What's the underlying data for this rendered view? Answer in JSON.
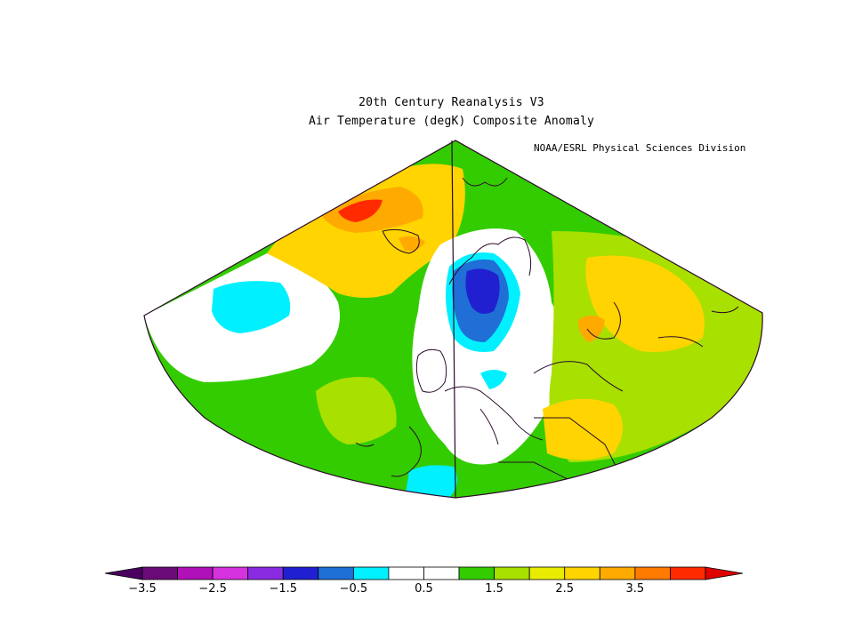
{
  "title": {
    "line1": "20th Century Reanalysis V3",
    "line2": "Air Temperature (degK) Composite Anomaly",
    "credit": "NOAA/ESRL Physical Sciences Division"
  },
  "colorbar": {
    "colors": [
      "#6a0a78",
      "#b010b8",
      "#d632de",
      "#8a2be2",
      "#2020d0",
      "#1f6fd6",
      "#00f0ff",
      "#ffffff",
      "#ffffff",
      "#33cc00",
      "#a8e000",
      "#e8ec00",
      "#ffd400",
      "#ffaa00",
      "#ff7a00",
      "#ff2a00"
    ],
    "under_color": "#4b0060",
    "over_color": "#e00000",
    "tick_labels": [
      "−3.5",
      "−2.5",
      "−1.5",
      "−0.5",
      "0.5",
      "1.5",
      "2.5",
      "3.5"
    ]
  },
  "map": {
    "background_color": "#33cc00",
    "regions": [
      {
        "name": "greenland-warm",
        "color": "#ffd400"
      },
      {
        "name": "greenland-hot",
        "color": "#ff7a00"
      },
      {
        "name": "atlantic-cool",
        "color": "#00f0ff"
      },
      {
        "name": "europe-neutral",
        "color": "#ffffff"
      },
      {
        "name": "central-europe-cold",
        "color": "#1f6fd6"
      },
      {
        "name": "central-europe-coldest",
        "color": "#2020d0"
      },
      {
        "name": "east-warm",
        "color": "#ffd400"
      },
      {
        "name": "east-yellowgreen",
        "color": "#a8e000"
      }
    ]
  }
}
